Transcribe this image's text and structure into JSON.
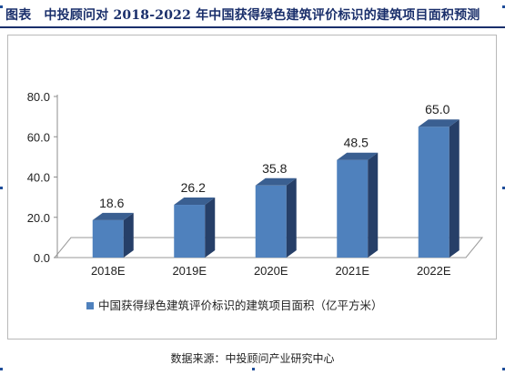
{
  "page": {
    "figure_label": "图表",
    "title": "中投顾问对 2018-2022 年中国获得绿色建筑评价标识的建筑项目面积预测",
    "source": "数据来源：中投顾问产业研究中心"
  },
  "chart_data": {
    "type": "bar",
    "categories": [
      "2018E",
      "2019E",
      "2020E",
      "2021E",
      "2022E"
    ],
    "series": [
      {
        "name": "中国获得绿色建筑评价标识的建筑项目面积（亿平方米）",
        "values": [
          18.6,
          26.2,
          35.8,
          48.5,
          65.0
        ],
        "labels": [
          "18.6",
          "26.2",
          "35.8",
          "48.5",
          "65.0"
        ]
      }
    ],
    "yticks": [
      "0.0",
      "20.0",
      "40.0",
      "60.0",
      "80.0"
    ],
    "ylim": [
      0,
      80
    ],
    "grid": false,
    "legend": "bottom",
    "style": "3d-bar",
    "colors": {
      "bar_front": "#4f81bd",
      "bar_side": "#263f68",
      "bar_top": "#3a5f91",
      "floor": "#ffffff",
      "floor_edge": "#9a9a9a",
      "wall": "#ffffff",
      "axis_text": "#222222",
      "title": "#1a2f6b"
    }
  }
}
